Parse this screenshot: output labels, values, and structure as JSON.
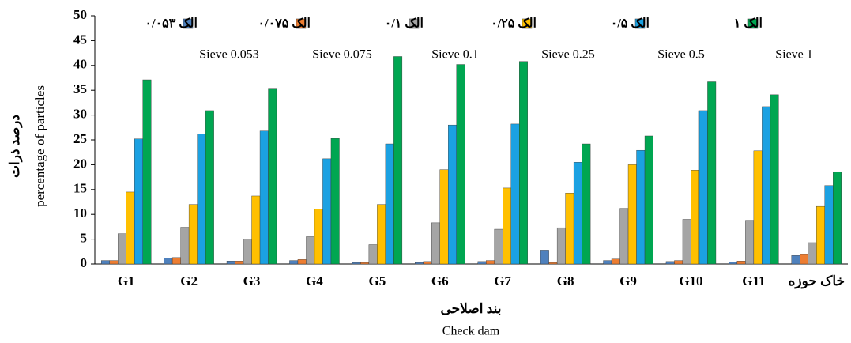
{
  "chart_data": {
    "type": "bar",
    "y_title": "درصد ذرات",
    "y_title_en": "percentage of particles",
    "x_title": "بند اصلاحی",
    "x_title_en": "Check dam",
    "categories": [
      "G1",
      "G2",
      "G3",
      "G4",
      "G5",
      "G6",
      "G7",
      "G8",
      "G9",
      "G10",
      "G11",
      "خاک حوزه"
    ],
    "series": [
      {
        "name": "الک ۰/۰۵۳",
        "name_en": "Sieve 0.053",
        "color": "#4f81bd",
        "values": [
          0.7,
          1.2,
          0.6,
          0.7,
          0.3,
          0.3,
          0.5,
          2.8,
          0.7,
          0.5,
          0.4,
          1.7
        ]
      },
      {
        "name": "الک ۰/۰۷۵",
        "name_en": "Sieve 0.075",
        "color": "#ed7d31",
        "values": [
          0.7,
          1.3,
          0.6,
          0.9,
          0.3,
          0.5,
          0.7,
          0.3,
          1.0,
          0.7,
          0.6,
          1.9
        ]
      },
      {
        "name": "الک ۰/۱",
        "name_en": "Sieve 0.1",
        "color": "#a5a5a5",
        "values": [
          6.1,
          7.4,
          5.0,
          5.5,
          3.9,
          8.3,
          7.0,
          7.3,
          11.2,
          9.0,
          8.8,
          4.3
        ]
      },
      {
        "name": "الک ۰/۲۵",
        "name_en": "Sieve 0.25",
        "color": "#ffc000",
        "values": [
          14.5,
          12.0,
          13.7,
          11.1,
          12.0,
          19.0,
          15.3,
          14.3,
          20.0,
          18.9,
          22.8,
          11.6
        ]
      },
      {
        "name": "الک ۰/۵",
        "name_en": "Sieve 0.5",
        "color": "#1ba1e2",
        "values": [
          25.2,
          26.2,
          26.8,
          21.2,
          24.2,
          28.0,
          28.2,
          20.5,
          22.9,
          30.9,
          31.7,
          15.8
        ]
      },
      {
        "name": "الک ۱",
        "name_en": "Sieve 1",
        "color": "#00a651",
        "values": [
          37.1,
          30.9,
          35.4,
          25.3,
          41.8,
          40.2,
          40.8,
          24.2,
          25.8,
          36.7,
          34.1,
          18.6
        ]
      }
    ],
    "ylim": [
      0,
      50
    ],
    "yticks": [
      0,
      5,
      10,
      15,
      20,
      25,
      30,
      35,
      40,
      45,
      50
    ],
    "grid": false
  }
}
